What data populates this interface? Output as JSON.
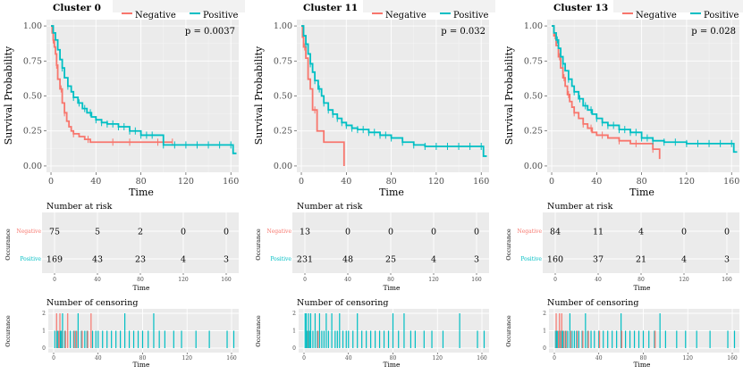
{
  "colors": {
    "negative": "#f8766d",
    "positive": "#00bfc4"
  },
  "legend": {
    "negative": "Negative",
    "positive": "Positive"
  },
  "labels": {
    "survival_ylabel": "Survival Probability",
    "time_xlabel": "Time",
    "risk_title": "Number at risk",
    "censor_title": "Number of censoring",
    "occurance": "Occurance",
    "risk_negative": "Negative",
    "risk_positive": "Positive"
  },
  "chart_data": [
    {
      "type": "line",
      "title": "Cluster 0",
      "pvalue": "p = 0.0037",
      "xlim": [
        0,
        165
      ],
      "ylim": [
        0,
        1
      ],
      "xticks": [
        0,
        40,
        80,
        120,
        160
      ],
      "yticks": [
        "0.00",
        "0.25",
        "0.50",
        "0.75",
        "1.00"
      ],
      "series": [
        {
          "name": "Negative",
          "x": [
            0,
            1,
            2,
            3,
            4,
            5,
            6,
            8,
            10,
            12,
            14,
            16,
            18,
            20,
            25,
            30,
            35,
            40,
            60,
            80,
            100,
            108
          ],
          "y": [
            1.0,
            0.95,
            0.9,
            0.85,
            0.8,
            0.72,
            0.62,
            0.55,
            0.45,
            0.38,
            0.32,
            0.28,
            0.25,
            0.23,
            0.21,
            0.19,
            0.17,
            0.17,
            0.17,
            0.17,
            0.17,
            0.17
          ],
          "censor_x": [
            2,
            5,
            9,
            12,
            20,
            33,
            55,
            70,
            95,
            108
          ]
        },
        {
          "name": "Positive",
          "x": [
            0,
            2,
            4,
            6,
            8,
            10,
            12,
            15,
            18,
            20,
            24,
            28,
            32,
            36,
            40,
            45,
            50,
            60,
            70,
            80,
            100,
            120,
            140,
            160,
            162,
            165
          ],
          "y": [
            1.0,
            0.95,
            0.9,
            0.83,
            0.76,
            0.7,
            0.63,
            0.57,
            0.53,
            0.49,
            0.45,
            0.41,
            0.38,
            0.35,
            0.33,
            0.31,
            0.3,
            0.28,
            0.25,
            0.22,
            0.15,
            0.15,
            0.15,
            0.15,
            0.09,
            0.09
          ],
          "censor_x": [
            10,
            15,
            20,
            25,
            30,
            35,
            40,
            45,
            50,
            55,
            60,
            65,
            70,
            75,
            80,
            85,
            90,
            100,
            110,
            120,
            130,
            140,
            150,
            160
          ]
        }
      ],
      "risk": {
        "times": [
          0,
          40,
          80,
          120,
          160
        ],
        "negative": [
          75,
          5,
          2,
          0,
          0
        ],
        "positive": [
          169,
          43,
          23,
          4,
          3
        ]
      },
      "censor_counts": {
        "times": [
          1,
          2,
          3,
          4,
          5,
          6,
          7,
          8,
          10,
          12,
          15,
          18,
          20,
          22,
          25,
          28,
          30,
          33,
          35,
          38,
          40,
          44,
          48,
          52,
          56,
          60,
          64,
          68,
          72,
          76,
          80,
          85,
          90,
          95,
          100,
          108,
          115,
          128,
          140,
          156,
          162
        ],
        "negative": [
          0,
          2,
          0,
          1,
          2,
          0,
          1,
          0,
          1,
          2,
          0,
          1,
          1,
          0,
          1,
          0,
          1,
          2,
          0,
          0,
          0,
          0,
          0,
          0,
          0,
          0,
          0,
          0,
          0,
          0,
          0,
          0,
          0,
          0,
          0,
          0,
          0,
          0,
          0,
          0,
          0
        ],
        "positive": [
          1,
          0,
          1,
          1,
          0,
          1,
          1,
          2,
          1,
          0,
          1,
          1,
          1,
          2,
          1,
          1,
          1,
          0,
          1,
          1,
          1,
          1,
          1,
          1,
          1,
          1,
          2,
          1,
          1,
          1,
          1,
          1,
          2,
          1,
          1,
          1,
          1,
          1,
          1,
          1,
          1
        ]
      }
    },
    {
      "type": "line",
      "title": "Cluster 11",
      "pvalue": "p = 0.032",
      "xlim": [
        0,
        165
      ],
      "ylim": [
        0,
        1
      ],
      "xticks": [
        0,
        40,
        80,
        120,
        160
      ],
      "yticks": [
        "0.00",
        "0.25",
        "0.50",
        "0.75",
        "1.00"
      ],
      "series": [
        {
          "name": "Negative",
          "x": [
            0,
            1,
            2,
            4,
            6,
            8,
            10,
            14,
            20,
            26,
            30,
            34,
            38,
            38
          ],
          "y": [
            1.0,
            0.92,
            0.85,
            0.77,
            0.62,
            0.55,
            0.4,
            0.25,
            0.17,
            0.17,
            0.17,
            0.17,
            0.17,
            0.0
          ],
          "censor_x": [
            3,
            12
          ]
        },
        {
          "name": "Positive",
          "x": [
            0,
            2,
            4,
            6,
            8,
            10,
            12,
            15,
            18,
            20,
            24,
            28,
            32,
            36,
            40,
            45,
            50,
            60,
            70,
            80,
            90,
            100,
            110,
            120,
            140,
            160,
            162,
            165
          ],
          "y": [
            1.0,
            0.93,
            0.87,
            0.8,
            0.73,
            0.67,
            0.61,
            0.55,
            0.5,
            0.45,
            0.4,
            0.37,
            0.34,
            0.31,
            0.29,
            0.27,
            0.26,
            0.24,
            0.22,
            0.2,
            0.17,
            0.15,
            0.14,
            0.14,
            0.14,
            0.14,
            0.07,
            0.07
          ],
          "censor_x": [
            4,
            8,
            12,
            16,
            20,
            24,
            28,
            32,
            36,
            40,
            45,
            50,
            55,
            60,
            65,
            70,
            75,
            80,
            90,
            100,
            110,
            120,
            130,
            140,
            150,
            160
          ]
        }
      ],
      "risk": {
        "times": [
          0,
          40,
          80,
          120,
          160
        ],
        "negative": [
          13,
          0,
          0,
          0,
          0
        ],
        "positive": [
          231,
          48,
          25,
          4,
          3
        ]
      },
      "censor_counts": {
        "times": [
          1,
          2,
          3,
          4,
          5,
          6,
          8,
          10,
          12,
          14,
          16,
          18,
          20,
          22,
          25,
          28,
          30,
          32,
          35,
          38,
          40,
          44,
          48,
          52,
          56,
          60,
          64,
          68,
          72,
          76,
          80,
          85,
          90,
          96,
          100,
          108,
          115,
          125,
          140,
          156,
          162
        ],
        "negative": [
          0,
          0,
          1,
          0,
          0,
          0,
          0,
          0,
          1,
          0,
          0,
          0,
          0,
          0,
          0,
          0,
          0,
          0,
          0,
          0,
          0,
          0,
          0,
          0,
          0,
          0,
          0,
          0,
          0,
          0,
          0,
          0,
          0,
          0,
          0,
          0,
          0,
          0,
          0,
          0,
          0
        ],
        "positive": [
          2,
          2,
          1,
          2,
          1,
          2,
          1,
          2,
          1,
          2,
          1,
          1,
          2,
          1,
          2,
          1,
          1,
          2,
          1,
          1,
          1,
          1,
          2,
          1,
          1,
          1,
          1,
          1,
          1,
          1,
          2,
          1,
          2,
          1,
          1,
          1,
          1,
          1,
          2,
          1,
          1
        ]
      }
    },
    {
      "type": "line",
      "title": "Cluster 13",
      "pvalue": "p = 0.028",
      "xlim": [
        0,
        165
      ],
      "ylim": [
        0,
        1
      ],
      "xticks": [
        0,
        40,
        80,
        120,
        160
      ],
      "yticks": [
        "0.00",
        "0.25",
        "0.50",
        "0.75",
        "1.00"
      ],
      "series": [
        {
          "name": "Negative",
          "x": [
            0,
            2,
            4,
            6,
            8,
            10,
            12,
            14,
            16,
            18,
            20,
            24,
            28,
            32,
            36,
            40,
            50,
            60,
            70,
            80,
            90,
            96,
            96
          ],
          "y": [
            1.0,
            0.93,
            0.86,
            0.78,
            0.7,
            0.63,
            0.57,
            0.51,
            0.46,
            0.42,
            0.38,
            0.34,
            0.3,
            0.27,
            0.24,
            0.22,
            0.2,
            0.18,
            0.16,
            0.16,
            0.12,
            0.12,
            0.05
          ],
          "censor_x": [
            3,
            7,
            11,
            15,
            20,
            28,
            35,
            45,
            60,
            75,
            90
          ]
        },
        {
          "name": "Positive",
          "x": [
            0,
            2,
            4,
            6,
            8,
            10,
            12,
            15,
            18,
            20,
            24,
            28,
            32,
            36,
            40,
            45,
            50,
            60,
            70,
            80,
            90,
            100,
            120,
            140,
            160,
            162,
            165
          ],
          "y": [
            1.0,
            0.95,
            0.9,
            0.84,
            0.78,
            0.73,
            0.68,
            0.62,
            0.57,
            0.53,
            0.48,
            0.43,
            0.4,
            0.37,
            0.34,
            0.31,
            0.29,
            0.26,
            0.24,
            0.2,
            0.18,
            0.17,
            0.16,
            0.16,
            0.16,
            0.1,
            0.1
          ],
          "censor_x": [
            5,
            10,
            15,
            20,
            25,
            30,
            35,
            40,
            45,
            50,
            55,
            60,
            65,
            70,
            75,
            80,
            85,
            90,
            100,
            110,
            120,
            130,
            140,
            150,
            160
          ]
        }
      ],
      "risk": {
        "times": [
          0,
          40,
          80,
          120,
          160
        ],
        "negative": [
          84,
          11,
          4,
          0,
          0
        ],
        "positive": [
          160,
          37,
          21,
          4,
          3
        ]
      },
      "censor_counts": {
        "times": [
          1,
          2,
          3,
          4,
          5,
          6,
          7,
          8,
          10,
          12,
          14,
          16,
          18,
          20,
          22,
          25,
          28,
          30,
          33,
          36,
          40,
          44,
          48,
          52,
          56,
          60,
          64,
          68,
          72,
          76,
          80,
          85,
          90,
          95,
          100,
          110,
          118,
          128,
          140,
          156,
          162
        ],
        "negative": [
          2,
          0,
          1,
          2,
          1,
          2,
          0,
          1,
          1,
          0,
          1,
          0,
          0,
          1,
          0,
          1,
          0,
          1,
          0,
          0,
          1,
          0,
          0,
          0,
          0,
          1,
          0,
          0,
          0,
          0,
          0,
          0,
          1,
          0,
          0,
          0,
          0,
          0,
          0,
          0,
          0
        ],
        "positive": [
          1,
          1,
          1,
          0,
          1,
          0,
          1,
          1,
          1,
          1,
          2,
          1,
          1,
          1,
          1,
          1,
          2,
          1,
          1,
          1,
          1,
          1,
          1,
          1,
          1,
          2,
          1,
          1,
          1,
          1,
          1,
          1,
          1,
          2,
          1,
          1,
          1,
          1,
          1,
          1,
          1
        ]
      }
    }
  ]
}
